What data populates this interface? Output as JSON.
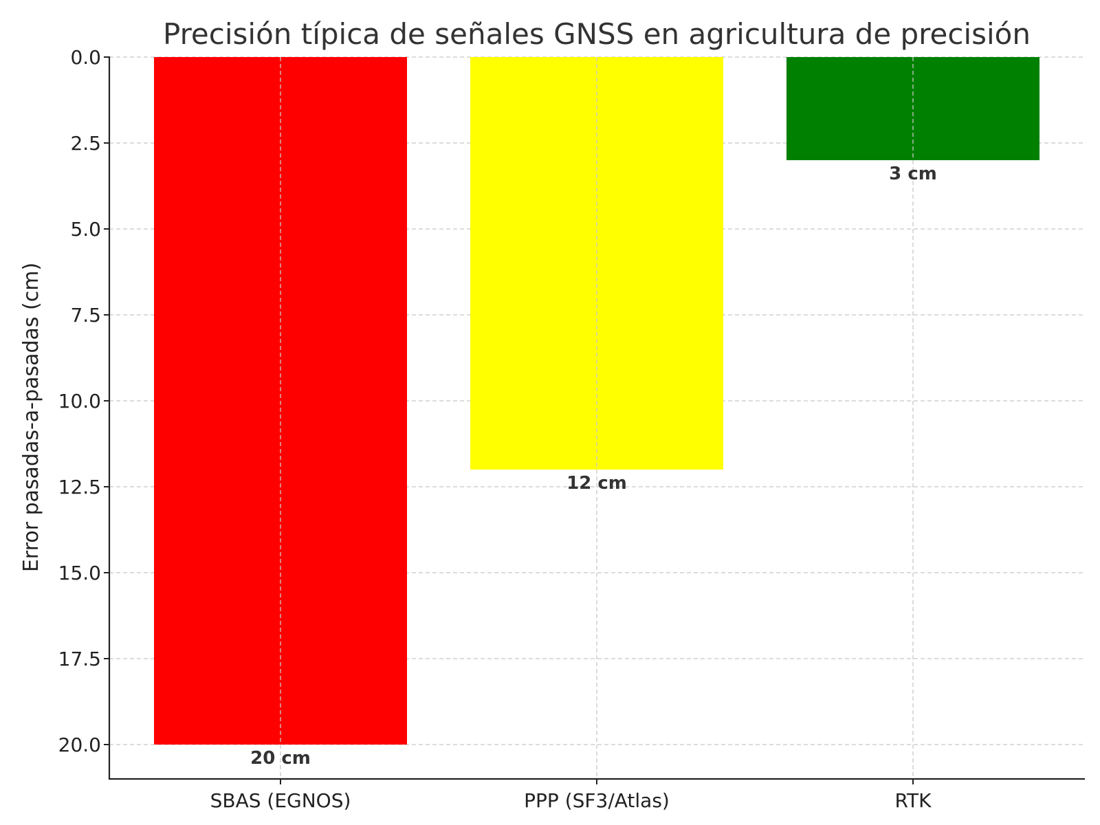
{
  "chart_data": {
    "type": "bar",
    "title": "Precisión típica de señales GNSS en agricultura de precisión",
    "xlabel": "",
    "ylabel": "Error pasadas-a-pasadas (cm)",
    "categories": [
      "SBAS (EGNOS)",
      "PPP (SF3/Atlas)",
      "RTK"
    ],
    "values": [
      20,
      12,
      3
    ],
    "data_labels": [
      "20 cm",
      "12 cm",
      "3 cm"
    ],
    "colors": [
      "#ff0000",
      "#ffff00",
      "#008000"
    ],
    "ylim": [
      0,
      21
    ],
    "y_inverted": true,
    "yticks": [
      0,
      2.5,
      5,
      7.5,
      10,
      12.5,
      15,
      17.5,
      20
    ],
    "ytick_labels": [
      "0.0",
      "2.5",
      "5.0",
      "7.5",
      "10.0",
      "12.5",
      "15.0",
      "17.5",
      "20.0"
    ],
    "grid": true,
    "legend": "none"
  }
}
